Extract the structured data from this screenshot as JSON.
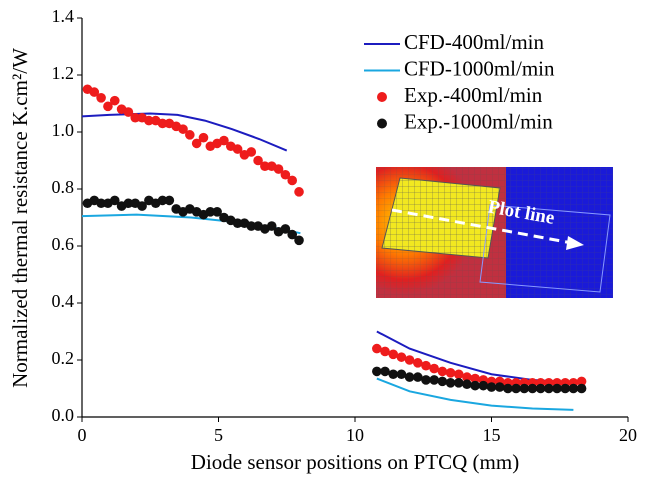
{
  "chart_data": {
    "type": "line",
    "xlabel": "Diode sensor positions on PTCQ (mm)",
    "ylabel": "Normalized thermal resistance K.cm²/W",
    "inset_label": "Plot line",
    "xlim": [
      0,
      20
    ],
    "xticks": [
      0,
      5,
      10,
      15,
      20
    ],
    "ylim": [
      0,
      1.4
    ],
    "yticks": [
      {
        "value": 0,
        "label": "0.0"
      },
      {
        "value": 0.2,
        "label": "0.2"
      },
      {
        "value": 0.4,
        "label": "0.4"
      },
      {
        "value": 0.6,
        "label": "0.6"
      },
      {
        "value": 0.8,
        "label": "0.8"
      },
      {
        "value": 1.0,
        "label": "1.0"
      },
      {
        "value": 1.2,
        "label": "1.2"
      },
      {
        "value": 1.4,
        "label": "1.4"
      }
    ],
    "legend": "top-right",
    "series": [
      {
        "name": "CFD-400ml/min",
        "type": "line",
        "color": "#1c1cbf",
        "x": [
          0,
          1,
          2.5,
          3.5,
          4.5,
          5.5,
          6.5,
          7.5,
          null,
          10.8,
          12,
          13.5,
          15,
          16.5,
          18.3
        ],
        "values": [
          1.055,
          1.06,
          1.065,
          1.06,
          1.04,
          1.01,
          0.975,
          0.935,
          null,
          0.3,
          0.24,
          0.19,
          0.15,
          0.13,
          0.12
        ]
      },
      {
        "name": "CFD-1000ml/min",
        "type": "line",
        "color": "#1aa7e0",
        "x": [
          0,
          2,
          4,
          5.5,
          7,
          8,
          null,
          10.8,
          12,
          13.5,
          15,
          16.5,
          18
        ],
        "values": [
          0.705,
          0.71,
          0.7,
          0.685,
          0.665,
          0.645,
          null,
          0.135,
          0.09,
          0.06,
          0.04,
          0.03,
          0.025
        ]
      },
      {
        "name": "Exp.-400ml/min",
        "type": "scatter",
        "color": "#ee1c1c",
        "x": [
          0.2,
          0.45,
          0.7,
          0.95,
          1.2,
          1.45,
          1.7,
          1.95,
          2.2,
          2.45,
          2.7,
          2.95,
          3.2,
          3.45,
          3.7,
          3.95,
          4.2,
          4.45,
          4.7,
          4.95,
          5.2,
          5.45,
          5.7,
          5.95,
          6.2,
          6.45,
          6.7,
          6.95,
          7.2,
          7.45,
          7.7,
          7.95,
          10.8,
          11.1,
          11.4,
          11.7,
          12,
          12.3,
          12.6,
          12.9,
          13.2,
          13.5,
          13.8,
          14.1,
          14.4,
          14.7,
          15,
          15.3,
          15.6,
          15.9,
          16.2,
          16.5,
          16.8,
          17.1,
          17.4,
          17.7,
          18,
          18.3
        ],
        "values": [
          1.15,
          1.14,
          1.12,
          1.09,
          1.11,
          1.08,
          1.07,
          1.05,
          1.05,
          1.04,
          1.04,
          1.03,
          1.03,
          1.02,
          1.01,
          0.99,
          0.96,
          0.98,
          0.95,
          0.96,
          0.97,
          0.95,
          0.94,
          0.92,
          0.93,
          0.9,
          0.88,
          0.88,
          0.87,
          0.85,
          0.83,
          0.79,
          0.24,
          0.23,
          0.22,
          0.21,
          0.2,
          0.19,
          0.18,
          0.17,
          0.16,
          0.155,
          0.15,
          0.14,
          0.135,
          0.13,
          0.125,
          0.125,
          0.12,
          0.12,
          0.12,
          0.12,
          0.12,
          0.12,
          0.12,
          0.12,
          0.12,
          0.125
        ]
      },
      {
        "name": "Exp.-1000ml/min",
        "type": "scatter",
        "color": "#111111",
        "x": [
          0.2,
          0.45,
          0.7,
          0.95,
          1.2,
          1.45,
          1.7,
          1.95,
          2.2,
          2.45,
          2.7,
          2.95,
          3.2,
          3.45,
          3.7,
          3.95,
          4.2,
          4.45,
          4.7,
          4.95,
          5.2,
          5.45,
          5.7,
          5.95,
          6.2,
          6.45,
          6.7,
          6.95,
          7.2,
          7.45,
          7.7,
          7.95,
          10.8,
          11.1,
          11.4,
          11.7,
          12,
          12.3,
          12.6,
          12.9,
          13.2,
          13.5,
          13.8,
          14.1,
          14.4,
          14.7,
          15,
          15.3,
          15.6,
          15.9,
          16.2,
          16.5,
          16.8,
          17.1,
          17.4,
          17.7,
          18,
          18.3
        ],
        "values": [
          0.75,
          0.76,
          0.75,
          0.75,
          0.76,
          0.74,
          0.75,
          0.75,
          0.74,
          0.76,
          0.75,
          0.76,
          0.76,
          0.73,
          0.72,
          0.73,
          0.72,
          0.71,
          0.72,
          0.72,
          0.7,
          0.69,
          0.68,
          0.68,
          0.67,
          0.67,
          0.66,
          0.67,
          0.65,
          0.66,
          0.64,
          0.62,
          0.16,
          0.16,
          0.15,
          0.15,
          0.14,
          0.14,
          0.13,
          0.13,
          0.125,
          0.12,
          0.12,
          0.115,
          0.11,
          0.11,
          0.105,
          0.105,
          0.1,
          0.1,
          0.1,
          0.1,
          0.1,
          0.1,
          0.1,
          0.1,
          0.1,
          0.1
        ]
      }
    ]
  }
}
